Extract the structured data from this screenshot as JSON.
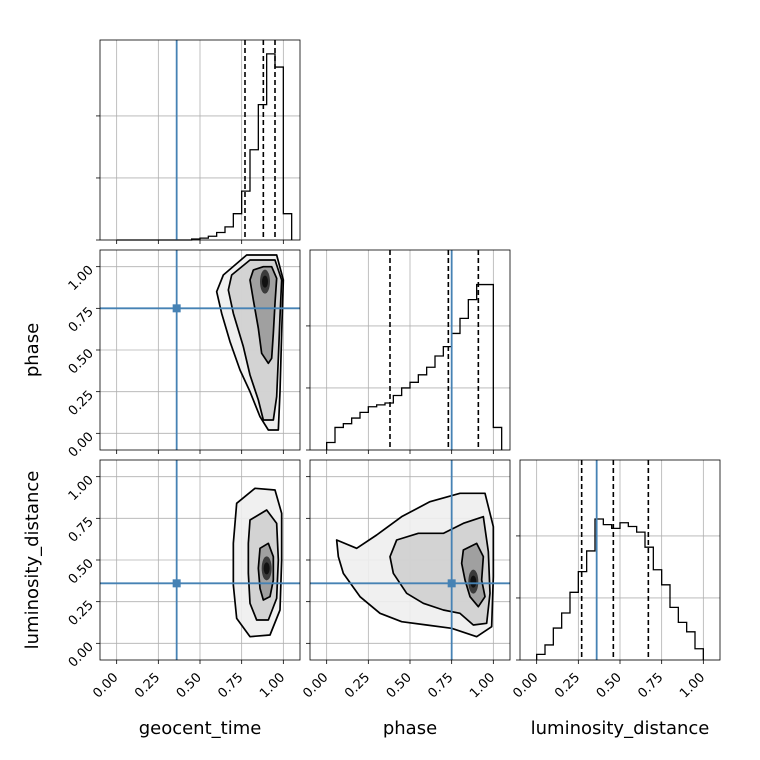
{
  "chart_data": {
    "type": "corner",
    "parameters": [
      "geocent_time",
      "phase",
      "luminosity_distance"
    ],
    "tick_labels": [
      "0.00",
      "0.25",
      "0.50",
      "0.75",
      "1.00"
    ],
    "axis_range": [
      -0.1,
      1.1
    ],
    "truths": {
      "geocent_time": 0.36,
      "phase": 0.75,
      "luminosity_distance": 0.36
    },
    "grid": true,
    "colors": {
      "truth": "#4682b4",
      "hist": "#000000",
      "quantile": "#000000",
      "grid": "#b0b0b0"
    },
    "histograms": {
      "geocent_time": {
        "bin_edges": [
          0.0,
          0.05,
          0.1,
          0.15,
          0.2,
          0.25,
          0.3,
          0.35,
          0.4,
          0.45,
          0.5,
          0.55,
          0.6,
          0.65,
          0.7,
          0.75,
          0.8,
          0.85,
          0.9,
          0.95,
          1.0,
          1.05
        ],
        "counts": [
          0,
          0,
          0,
          0,
          0,
          0,
          0,
          0,
          0,
          0.5,
          1,
          2,
          4,
          7,
          14,
          26,
          48,
          72,
          99,
          92,
          14
        ],
        "ylim": [
          0,
          100
        ],
        "quantiles": [
          0.77,
          0.88,
          0.95
        ]
      },
      "phase": {
        "bin_edges": [
          0.0,
          0.05,
          0.1,
          0.15,
          0.2,
          0.25,
          0.3,
          0.35,
          0.4,
          0.45,
          0.5,
          0.55,
          0.6,
          0.65,
          0.7,
          0.75,
          0.8,
          0.85,
          0.9,
          0.95,
          1.0,
          1.05
        ],
        "counts": [
          4,
          12,
          14,
          17,
          20,
          23,
          24,
          25,
          29,
          33,
          36,
          40,
          44,
          50,
          55,
          62,
          70,
          80,
          88,
          88,
          12
        ],
        "ylim": [
          0,
          100
        ],
        "quantiles": [
          0.38,
          0.73,
          0.91
        ]
      },
      "luminosity_distance": {
        "bin_edges": [
          0.0,
          0.05,
          0.1,
          0.15,
          0.2,
          0.25,
          0.3,
          0.35,
          0.4,
          0.45,
          0.5,
          0.55,
          0.6,
          0.65,
          0.7,
          0.75,
          0.8,
          0.85,
          0.9,
          0.95,
          1.0
        ],
        "counts": [
          3,
          8,
          17,
          25,
          36,
          47,
          58,
          75,
          72,
          70,
          73,
          71,
          68,
          60,
          48,
          40,
          28,
          20,
          15,
          6
        ],
        "ylim": [
          0,
          100
        ],
        "quantiles": [
          0.27,
          0.46,
          0.67
        ]
      }
    },
    "pair_densities": {
      "phase_vs_geocent_time": {
        "x": "geocent_time",
        "y": "phase",
        "mode": [
          0.89,
          0.91
        ],
        "contours": [
          [
            [
              0.82,
              0.98
            ],
            [
              0.88,
              1.0
            ],
            [
              0.93,
              1.0
            ],
            [
              0.96,
              0.93
            ],
            [
              0.95,
              0.78
            ],
            [
              0.94,
              0.6
            ],
            [
              0.93,
              0.45
            ],
            [
              0.91,
              0.42
            ],
            [
              0.87,
              0.48
            ],
            [
              0.85,
              0.63
            ],
            [
              0.82,
              0.8
            ],
            [
              0.8,
              0.92
            ]
          ],
          [
            [
              0.69,
              0.95
            ],
            [
              0.8,
              1.04
            ],
            [
              0.95,
              1.04
            ],
            [
              0.99,
              0.92
            ],
            [
              0.98,
              0.7
            ],
            [
              0.97,
              0.45
            ],
            [
              0.96,
              0.22
            ],
            [
              0.94,
              0.08
            ],
            [
              0.88,
              0.08
            ],
            [
              0.85,
              0.2
            ],
            [
              0.8,
              0.35
            ],
            [
              0.76,
              0.52
            ],
            [
              0.7,
              0.72
            ],
            [
              0.67,
              0.86
            ]
          ],
          [
            [
              0.64,
              0.95
            ],
            [
              0.78,
              1.07
            ],
            [
              0.96,
              1.07
            ],
            [
              1.0,
              0.92
            ],
            [
              0.99,
              0.6
            ],
            [
              0.98,
              0.25
            ],
            [
              0.97,
              0.02
            ],
            [
              0.91,
              0.02
            ],
            [
              0.86,
              0.1
            ],
            [
              0.8,
              0.25
            ],
            [
              0.74,
              0.38
            ],
            [
              0.68,
              0.55
            ],
            [
              0.63,
              0.72
            ],
            [
              0.6,
              0.85
            ]
          ]
        ]
      },
      "luminosity_distance_vs_geocent_time": {
        "x": "geocent_time",
        "y": "luminosity_distance",
        "mode": [
          0.9,
          0.45
        ],
        "contours": [
          [
            [
              0.86,
              0.57
            ],
            [
              0.91,
              0.6
            ],
            [
              0.94,
              0.52
            ],
            [
              0.94,
              0.38
            ],
            [
              0.92,
              0.28
            ],
            [
              0.88,
              0.26
            ],
            [
              0.86,
              0.33
            ],
            [
              0.85,
              0.45
            ]
          ],
          [
            [
              0.8,
              0.74
            ],
            [
              0.9,
              0.8
            ],
            [
              0.96,
              0.72
            ],
            [
              0.97,
              0.5
            ],
            [
              0.96,
              0.27
            ],
            [
              0.91,
              0.14
            ],
            [
              0.84,
              0.14
            ],
            [
              0.8,
              0.24
            ],
            [
              0.79,
              0.42
            ],
            [
              0.79,
              0.6
            ]
          ],
          [
            [
              0.72,
              0.84
            ],
            [
              0.83,
              0.93
            ],
            [
              0.95,
              0.92
            ],
            [
              0.99,
              0.78
            ],
            [
              0.99,
              0.5
            ],
            [
              0.98,
              0.2
            ],
            [
              0.92,
              0.05
            ],
            [
              0.8,
              0.04
            ],
            [
              0.72,
              0.15
            ],
            [
              0.7,
              0.35
            ],
            [
              0.7,
              0.6
            ]
          ]
        ]
      },
      "luminosity_distance_vs_phase": {
        "x": "phase",
        "y": "luminosity_distance",
        "mode": [
          0.88,
          0.37
        ],
        "contours": [
          [
            [
              0.82,
              0.56
            ],
            [
              0.9,
              0.6
            ],
            [
              0.94,
              0.52
            ],
            [
              0.93,
              0.38
            ],
            [
              0.95,
              0.28
            ],
            [
              0.91,
              0.22
            ],
            [
              0.86,
              0.28
            ],
            [
              0.83,
              0.38
            ],
            [
              0.81,
              0.48
            ]
          ],
          [
            [
              0.42,
              0.62
            ],
            [
              0.55,
              0.66
            ],
            [
              0.7,
              0.66
            ],
            [
              0.82,
              0.72
            ],
            [
              0.94,
              0.76
            ],
            [
              0.97,
              0.55
            ],
            [
              0.98,
              0.3
            ],
            [
              0.96,
              0.12
            ],
            [
              0.88,
              0.11
            ],
            [
              0.8,
              0.18
            ],
            [
              0.7,
              0.2
            ],
            [
              0.58,
              0.24
            ],
            [
              0.48,
              0.3
            ],
            [
              0.4,
              0.42
            ],
            [
              0.38,
              0.52
            ]
          ],
          [
            [
              0.06,
              0.62
            ],
            [
              0.18,
              0.57
            ],
            [
              0.3,
              0.65
            ],
            [
              0.45,
              0.76
            ],
            [
              0.62,
              0.85
            ],
            [
              0.8,
              0.9
            ],
            [
              0.95,
              0.9
            ],
            [
              1.0,
              0.7
            ],
            [
              1.0,
              0.4
            ],
            [
              0.99,
              0.1
            ],
            [
              0.9,
              0.04
            ],
            [
              0.75,
              0.09
            ],
            [
              0.6,
              0.11
            ],
            [
              0.45,
              0.13
            ],
            [
              0.32,
              0.18
            ],
            [
              0.2,
              0.28
            ],
            [
              0.1,
              0.42
            ],
            [
              0.07,
              0.52
            ]
          ]
        ]
      }
    }
  }
}
